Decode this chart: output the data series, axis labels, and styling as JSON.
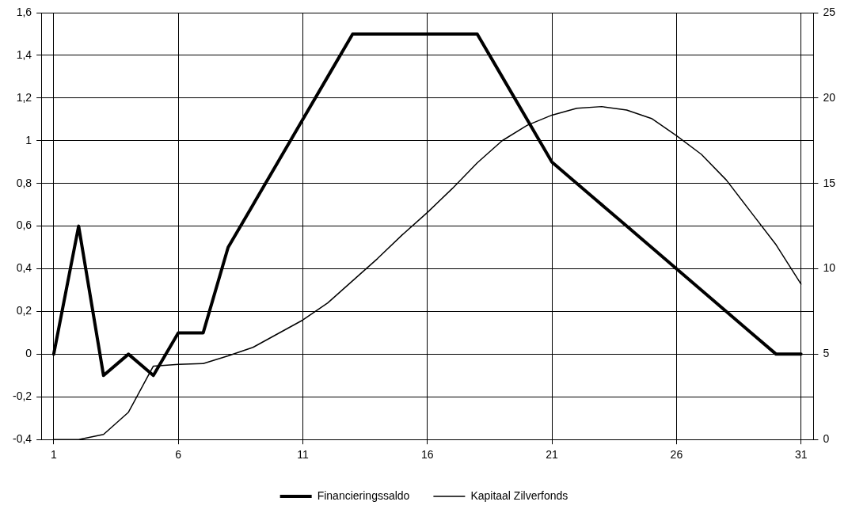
{
  "chart_data": {
    "type": "line",
    "x": [
      1,
      2,
      3,
      4,
      5,
      6,
      7,
      8,
      9,
      10,
      11,
      12,
      13,
      14,
      15,
      16,
      17,
      18,
      19,
      20,
      21,
      22,
      23,
      24,
      25,
      26,
      27,
      28,
      29,
      30,
      31
    ],
    "series": [
      {
        "name": "Financieringssaldo",
        "color": "#000000",
        "values": [
          0,
          0.6,
          -0.1,
          0,
          -0.1,
          0.1,
          0.1,
          0.5,
          0.7,
          0.9,
          1.1,
          1.3,
          1.5,
          1.5,
          1.5,
          1.5,
          1.5,
          1.5,
          1.3,
          1.1,
          0.9,
          0.8,
          0.7,
          0.6,
          0.5,
          0.4,
          0.3,
          0.2,
          0.1,
          0,
          0
        ]
      },
      {
        "name": "Kapitaal Zilverfonds",
        "color": "#000000",
        "axis": "y2",
        "values": [
          0,
          0,
          0.3,
          1.6,
          4.3,
          4.4,
          4.45,
          4.9,
          5.4,
          6.2,
          7,
          8,
          9.3,
          10.6,
          12,
          13.3,
          14.7,
          16.2,
          17.5,
          18.4,
          19,
          19.4,
          19.5,
          19.3,
          18.8,
          17.8,
          16.7,
          15.2,
          13.3,
          11.4,
          9.1
        ]
      }
    ],
    "xlim": [
      0.5,
      31.5
    ],
    "xticks": [
      1,
      6,
      11,
      16,
      21,
      26,
      31
    ],
    "ylim": [
      -0.4,
      1.6
    ],
    "yticks": [
      {
        "value": -0.4,
        "label": "-0,4"
      },
      {
        "value": -0.2,
        "label": "-0,2"
      },
      0,
      {
        "value": 0.2,
        "label": "0,2"
      },
      {
        "value": 0.4,
        "label": "0,4"
      },
      {
        "value": 0.6,
        "label": "0,6"
      },
      {
        "value": 0.8,
        "label": "0,8"
      },
      1,
      {
        "value": 1.2,
        "label": "1,2"
      },
      {
        "value": 1.4,
        "label": "1,4"
      },
      {
        "value": 1.6,
        "label": "1,6"
      }
    ],
    "y2lim": [
      0,
      25
    ],
    "y2ticks": [
      0,
      5,
      10,
      15,
      20,
      25
    ],
    "grid": true,
    "legend": "bottom",
    "marker": "none",
    "line_style": "solid"
  }
}
